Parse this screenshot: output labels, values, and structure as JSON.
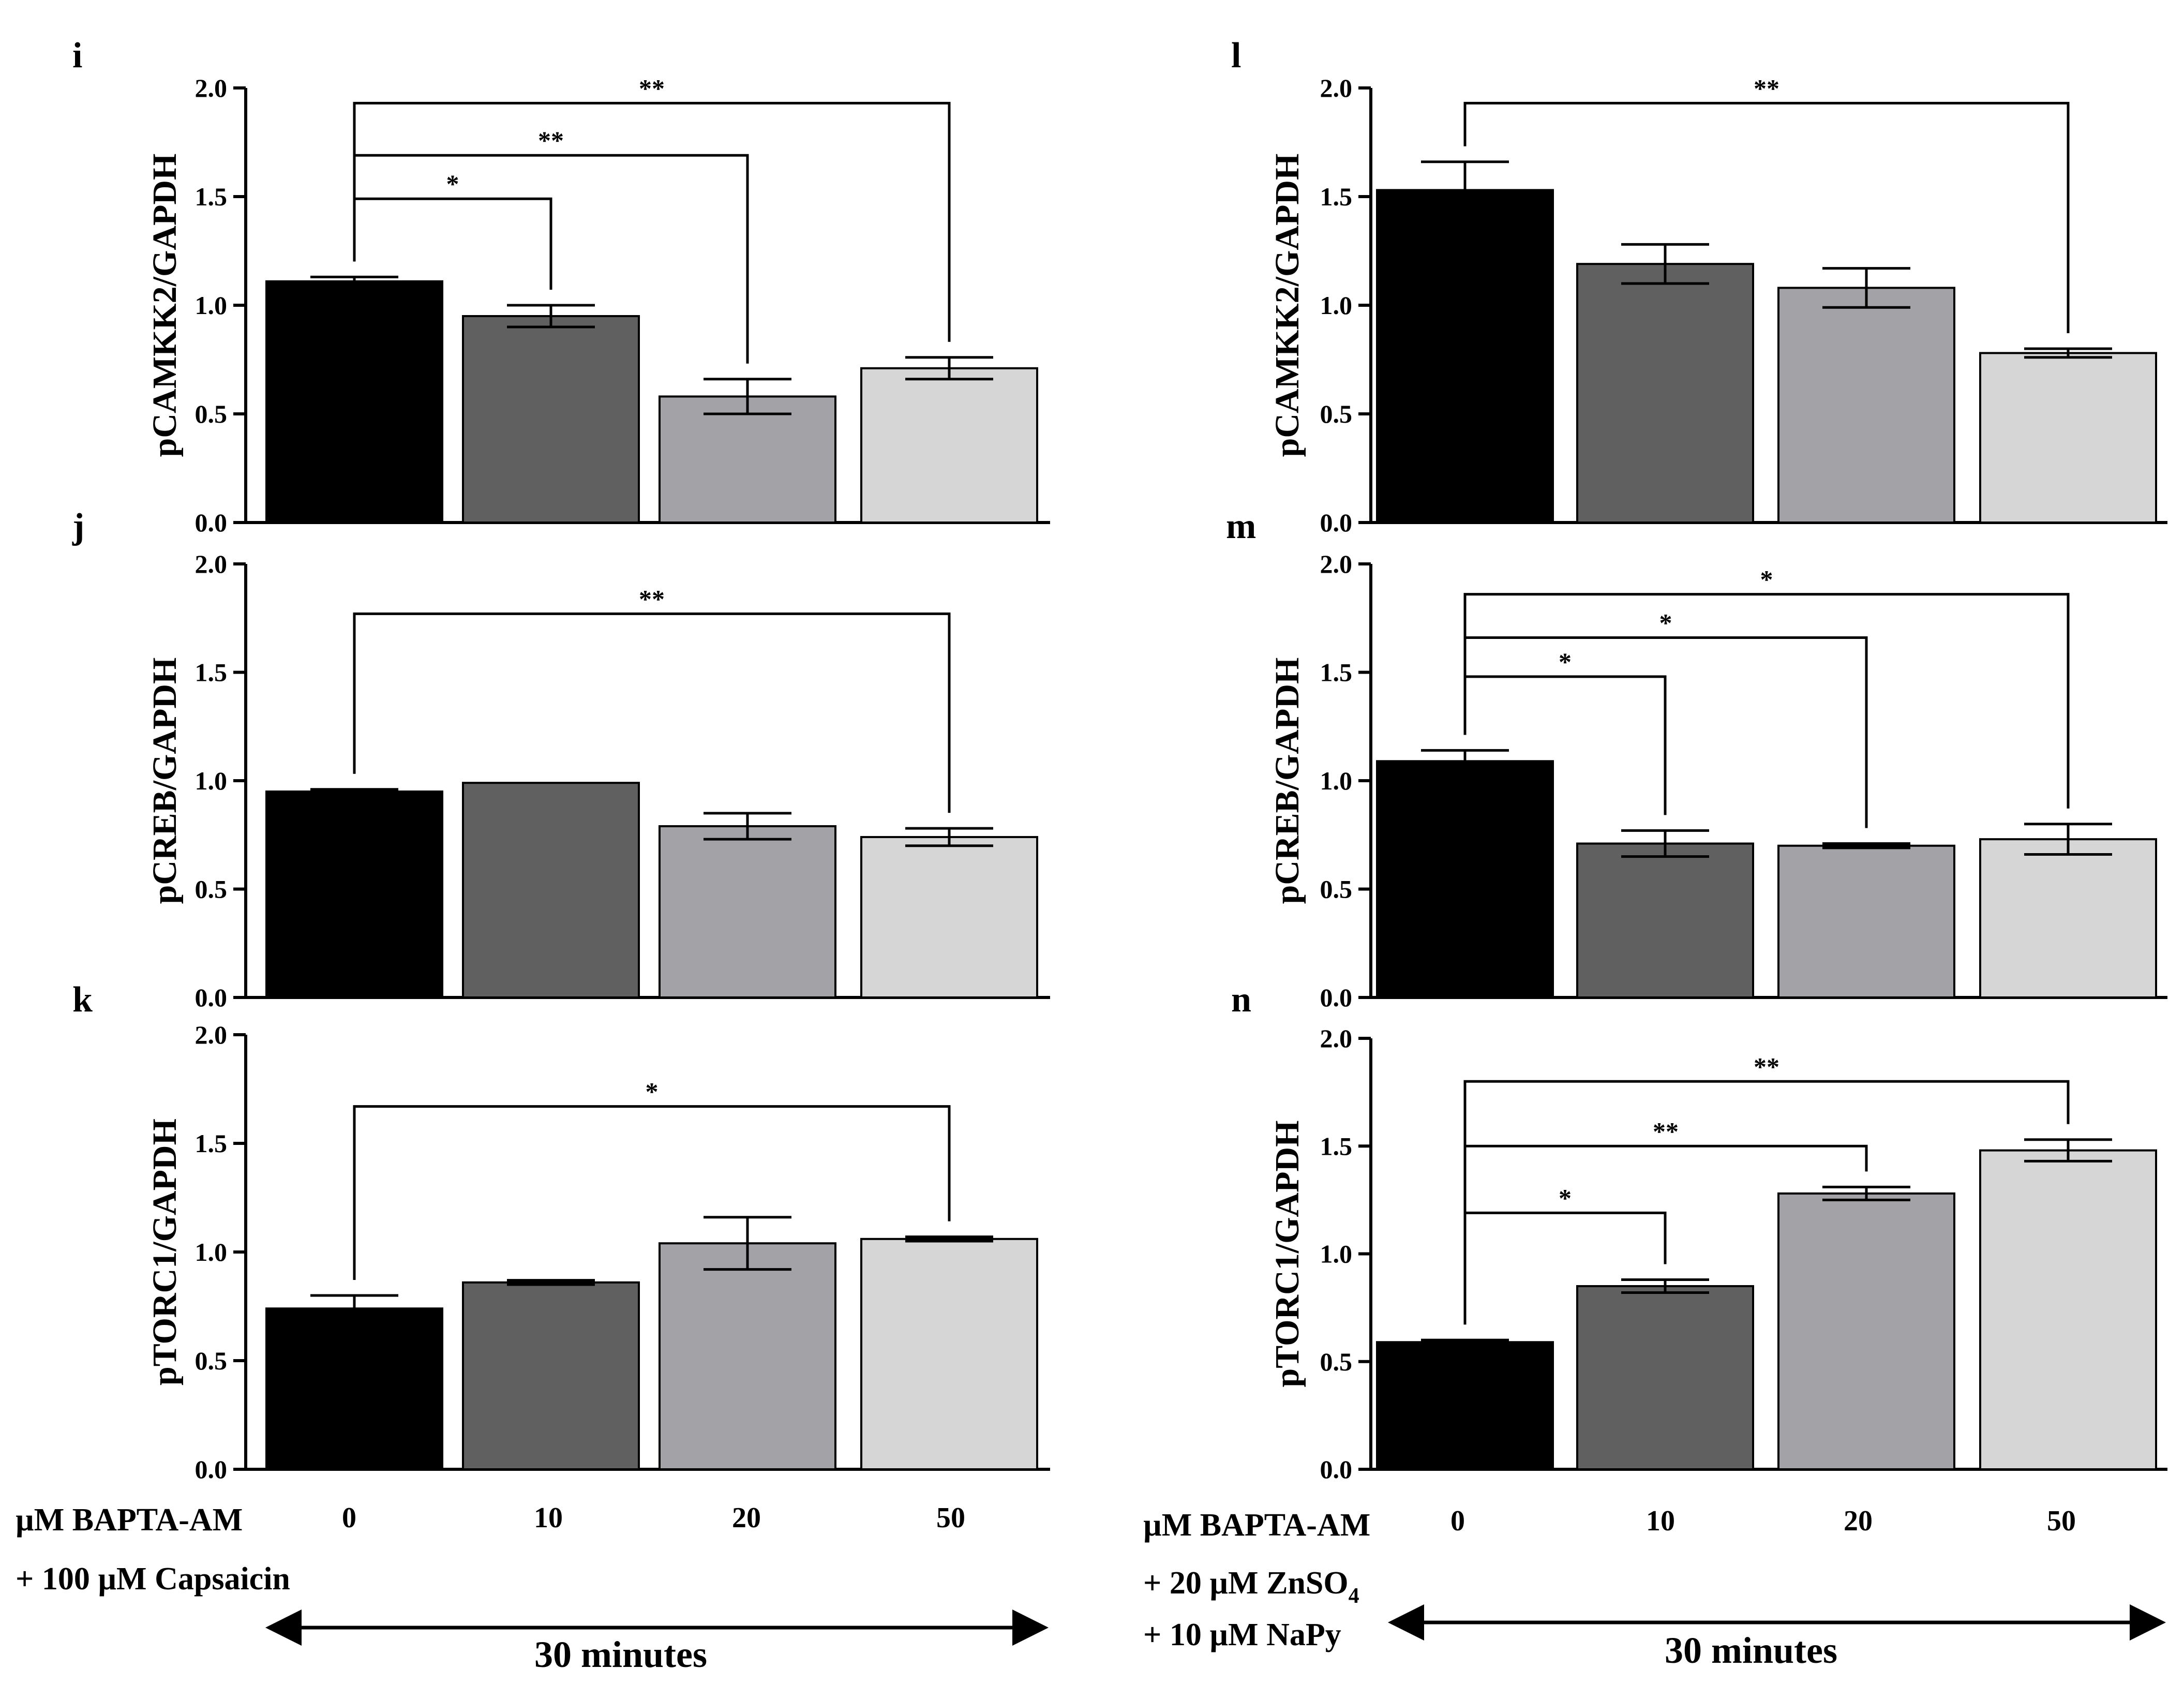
{
  "figure": {
    "colors": {
      "bar_colors": [
        "#000000",
        "#606060",
        "#a3a2a7",
        "#d6d6d6"
      ],
      "axis": "#000000"
    },
    "left_conditions": {
      "line1": "µM BAPTA-AM",
      "line2": "+ 100 µM Capsaicin",
      "categories": [
        "0",
        "10",
        "20",
        "50"
      ],
      "duration": "30 minutes"
    },
    "right_conditions": {
      "line1": "µM BAPTA-AM",
      "line2": "+ 20 µM ZnSO",
      "line2_sub": "4",
      "line3": "+ 10 µM NaPy",
      "categories": [
        "0",
        "10",
        "20",
        "50"
      ],
      "duration": "30 minutes"
    }
  },
  "chart_data": [
    {
      "panel": "i",
      "type": "bar",
      "ylabel": "pCAMKK2/GAPDH",
      "ylim": [
        0,
        2
      ],
      "yticks": [
        "0.0",
        "0.5",
        "1.0",
        "1.5",
        "2.0"
      ],
      "categories": [
        "0",
        "10",
        "20",
        "50"
      ],
      "values": [
        1.11,
        0.95,
        0.58,
        0.71
      ],
      "errors": [
        0.02,
        0.05,
        0.08,
        0.05
      ],
      "significance": [
        {
          "from": 0,
          "to": 1,
          "label": "*",
          "y": 1.49
        },
        {
          "from": 0,
          "to": 2,
          "label": "**",
          "y": 1.69
        },
        {
          "from": 0,
          "to": 3,
          "label": "**",
          "y": 1.93
        }
      ]
    },
    {
      "panel": "j",
      "type": "bar",
      "ylabel": "pCREB/GAPDH",
      "ylim": [
        0,
        2
      ],
      "yticks": [
        "0.0",
        "0.5",
        "1.0",
        "1.5",
        "2.0"
      ],
      "categories": [
        "0",
        "10",
        "20",
        "50"
      ],
      "values": [
        0.95,
        0.99,
        0.79,
        0.74
      ],
      "errors": [
        0.01,
        0.0,
        0.06,
        0.04
      ],
      "significance": [
        {
          "from": 0,
          "to": 3,
          "label": "**",
          "y": 1.77
        }
      ]
    },
    {
      "panel": "k",
      "type": "bar",
      "ylabel": "pTORC1/GAPDH",
      "ylim": [
        0,
        2
      ],
      "yticks": [
        "0.0",
        "0.5",
        "1.0",
        "1.5",
        "2.0"
      ],
      "categories": [
        "0",
        "10",
        "20",
        "50"
      ],
      "values": [
        0.74,
        0.86,
        1.04,
        1.06
      ],
      "errors": [
        0.06,
        0.01,
        0.12,
        0.01
      ],
      "significance": [
        {
          "from": 0,
          "to": 3,
          "label": "*",
          "y": 1.67
        }
      ]
    },
    {
      "panel": "l",
      "type": "bar",
      "ylabel": "pCAMKK2/GAPDH",
      "ylim": [
        0,
        2
      ],
      "yticks": [
        "0.0",
        "0.5",
        "1.0",
        "1.5",
        "2.0"
      ],
      "categories": [
        "0",
        "10",
        "20",
        "50"
      ],
      "values": [
        1.53,
        1.19,
        1.08,
        0.78
      ],
      "errors": [
        0.13,
        0.09,
        0.09,
        0.02
      ],
      "significance": [
        {
          "from": 0,
          "to": 3,
          "label": "**",
          "y": 1.93
        }
      ]
    },
    {
      "panel": "m",
      "type": "bar",
      "ylabel": "pCREB/GAPDH",
      "ylim": [
        0,
        2
      ],
      "yticks": [
        "0.0",
        "0.5",
        "1.0",
        "1.5",
        "2.0"
      ],
      "categories": [
        "0",
        "10",
        "20",
        "50"
      ],
      "values": [
        1.09,
        0.71,
        0.7,
        0.73
      ],
      "errors": [
        0.05,
        0.06,
        0.01,
        0.07
      ],
      "significance": [
        {
          "from": 0,
          "to": 1,
          "label": "*",
          "y": 1.48
        },
        {
          "from": 0,
          "to": 2,
          "label": "*",
          "y": 1.66
        },
        {
          "from": 0,
          "to": 3,
          "label": "*",
          "y": 1.86
        }
      ]
    },
    {
      "panel": "n",
      "type": "bar",
      "ylabel": "pTORC1/GAPDH",
      "ylim": [
        0,
        2
      ],
      "yticks": [
        "0.0",
        "0.5",
        "1.0",
        "1.5",
        "2.0"
      ],
      "categories": [
        "0",
        "10",
        "20",
        "50"
      ],
      "values": [
        0.59,
        0.85,
        1.28,
        1.48
      ],
      "errors": [
        0.01,
        0.03,
        0.03,
        0.05
      ],
      "significance": [
        {
          "from": 0,
          "to": 1,
          "label": "*",
          "y": 1.19
        },
        {
          "from": 0,
          "to": 2,
          "label": "**",
          "y": 1.5
        },
        {
          "from": 0,
          "to": 3,
          "label": "**",
          "y": 1.8
        }
      ]
    }
  ]
}
